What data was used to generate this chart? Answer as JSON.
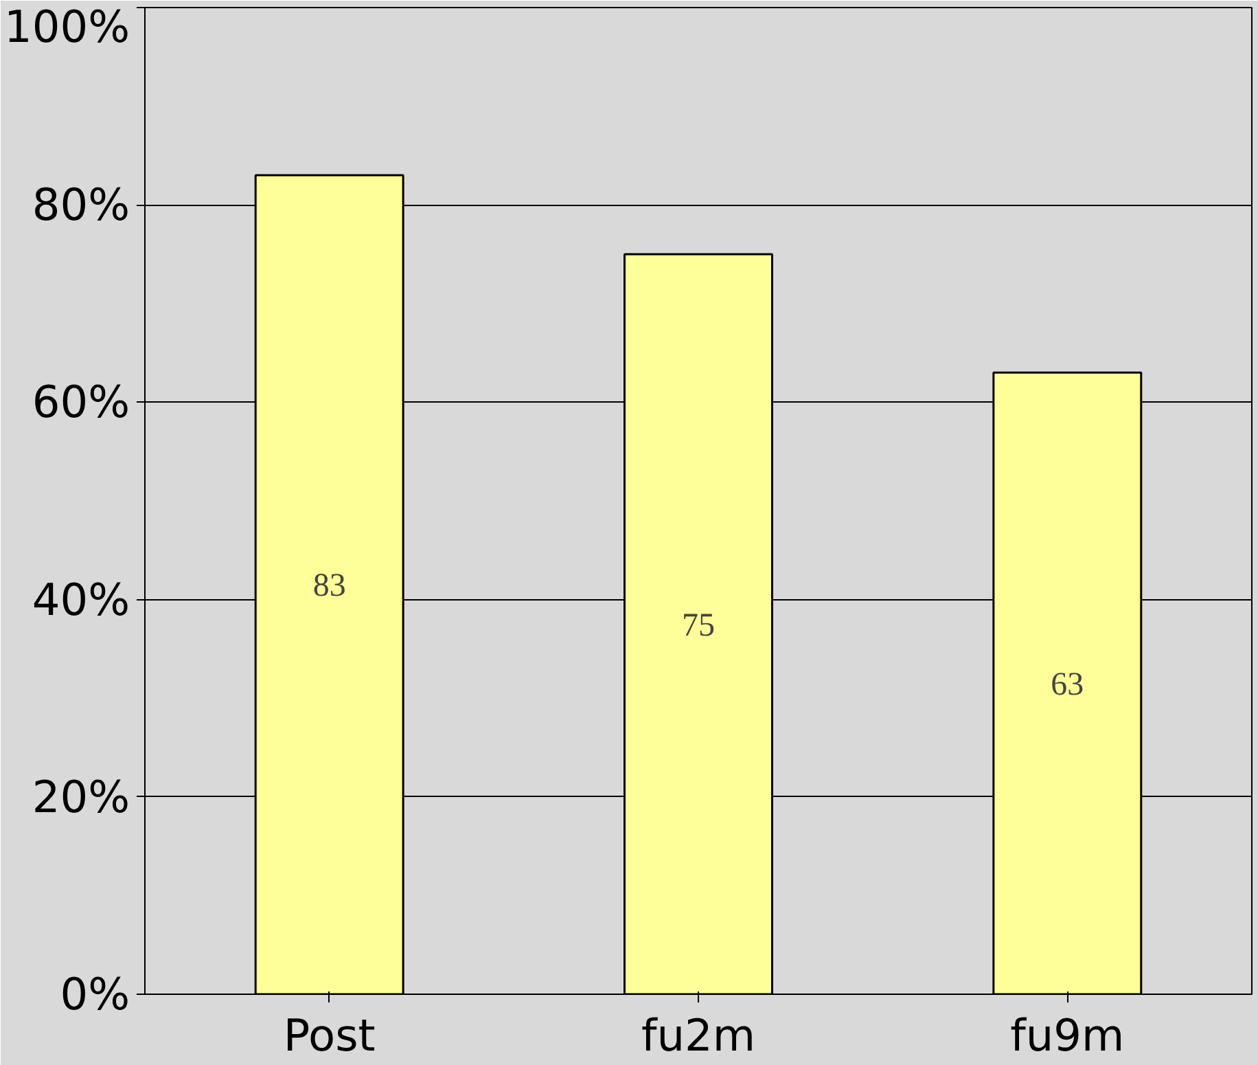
{
  "chart_data": {
    "type": "bar",
    "categories": [
      "Post",
      "fu2m",
      "fu9m"
    ],
    "values": [
      83,
      75,
      63
    ],
    "color": "#ffff99",
    "ylim": [
      0,
      100
    ],
    "yticks": [
      {
        "value": 0,
        "label": "0%"
      },
      {
        "value": 20,
        "label": "20%"
      },
      {
        "value": 40,
        "label": "40%"
      },
      {
        "value": 60,
        "label": "60%"
      },
      {
        "value": 80,
        "label": "80%"
      },
      {
        "value": 100,
        "label": "100%"
      }
    ],
    "grid": "y",
    "data_labels": true
  }
}
